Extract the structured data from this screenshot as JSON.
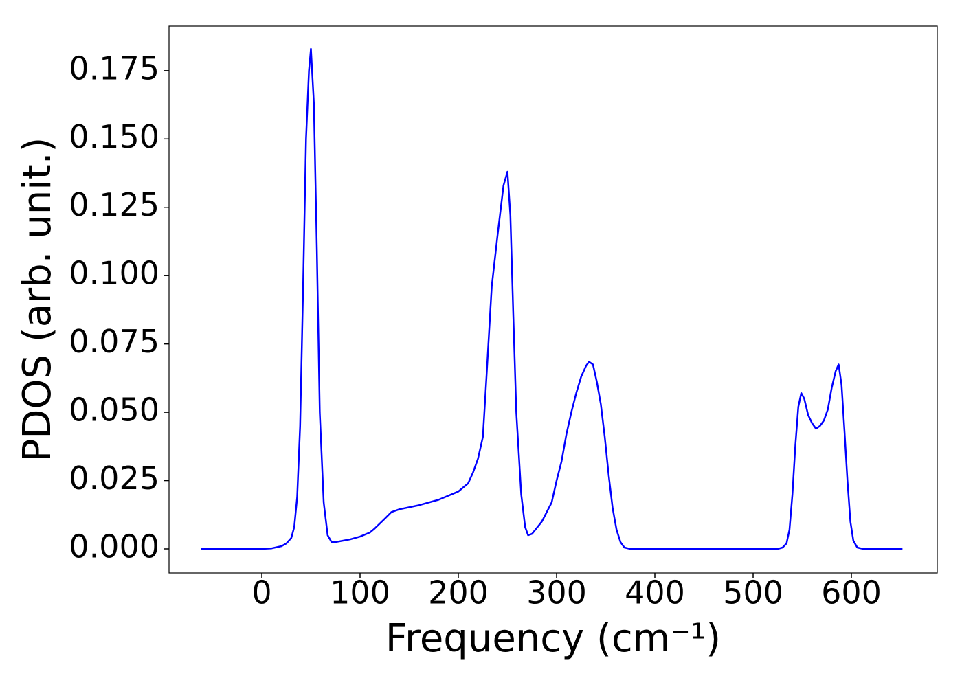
{
  "chart_data": {
    "type": "line",
    "xlabel": "Frequency (cm⁻¹)",
    "ylabel": "PDOS (arb. unit.)",
    "xlim": [
      -94.4,
      687.4
    ],
    "ylim": [
      -0.0088,
      0.1913
    ],
    "xticks": [
      0,
      100,
      200,
      300,
      400,
      500,
      600
    ],
    "yticks": [
      {
        "value": 0,
        "label": "0.000"
      },
      {
        "value": 0.025,
        "label": "0.025"
      },
      {
        "value": 0.05,
        "label": "0.050"
      },
      {
        "value": 0.075,
        "label": "0.075"
      },
      {
        "value": 0.1,
        "label": "0.100"
      },
      {
        "value": 0.125,
        "label": "0.125"
      },
      {
        "value": 0.15,
        "label": "0.150"
      },
      {
        "value": 0.175,
        "label": "0.175"
      }
    ],
    "x": [
      -62,
      0,
      10,
      20,
      25,
      30,
      33,
      36,
      39,
      42,
      45,
      48,
      50,
      53,
      56,
      59,
      63,
      67,
      71,
      75,
      90,
      100,
      110,
      115,
      125,
      132,
      140,
      160,
      180,
      200,
      210,
      215,
      220,
      225,
      229,
      234,
      240,
      246,
      250,
      253,
      256,
      259,
      264,
      268,
      271,
      275,
      285,
      295,
      300,
      305,
      310,
      315,
      320,
      325,
      330,
      333,
      337,
      341,
      345,
      349,
      353,
      357,
      361,
      365,
      369,
      375,
      450,
      525,
      530,
      534,
      537,
      540,
      543,
      546,
      549,
      552,
      556,
      560,
      564,
      568,
      572,
      576,
      580,
      584,
      587,
      590,
      593,
      596,
      599,
      602,
      606,
      612,
      652
    ],
    "series": [
      {
        "name": "PDOS",
        "color": "#0000ff",
        "values": [
          0,
          0,
          0.0002,
          0.001,
          0.002,
          0.004,
          0.008,
          0.019,
          0.045,
          0.095,
          0.15,
          0.175,
          0.183,
          0.163,
          0.11,
          0.05,
          0.017,
          0.005,
          0.0025,
          0.0025,
          0.0035,
          0.0045,
          0.006,
          0.0075,
          0.011,
          0.0135,
          0.0145,
          0.016,
          0.018,
          0.021,
          0.024,
          0.028,
          0.033,
          0.041,
          0.065,
          0.096,
          0.115,
          0.133,
          0.138,
          0.122,
          0.085,
          0.05,
          0.02,
          0.008,
          0.005,
          0.0055,
          0.01,
          0.017,
          0.025,
          0.032,
          0.042,
          0.05,
          0.057,
          0.063,
          0.067,
          0.0685,
          0.0675,
          0.061,
          0.053,
          0.041,
          0.027,
          0.015,
          0.007,
          0.0025,
          0.0005,
          0,
          0,
          0,
          0.0005,
          0.002,
          0.007,
          0.02,
          0.038,
          0.052,
          0.057,
          0.055,
          0.049,
          0.046,
          0.044,
          0.045,
          0.047,
          0.051,
          0.059,
          0.065,
          0.0675,
          0.06,
          0.043,
          0.025,
          0.01,
          0.003,
          0.0005,
          0,
          0
        ]
      }
    ]
  }
}
